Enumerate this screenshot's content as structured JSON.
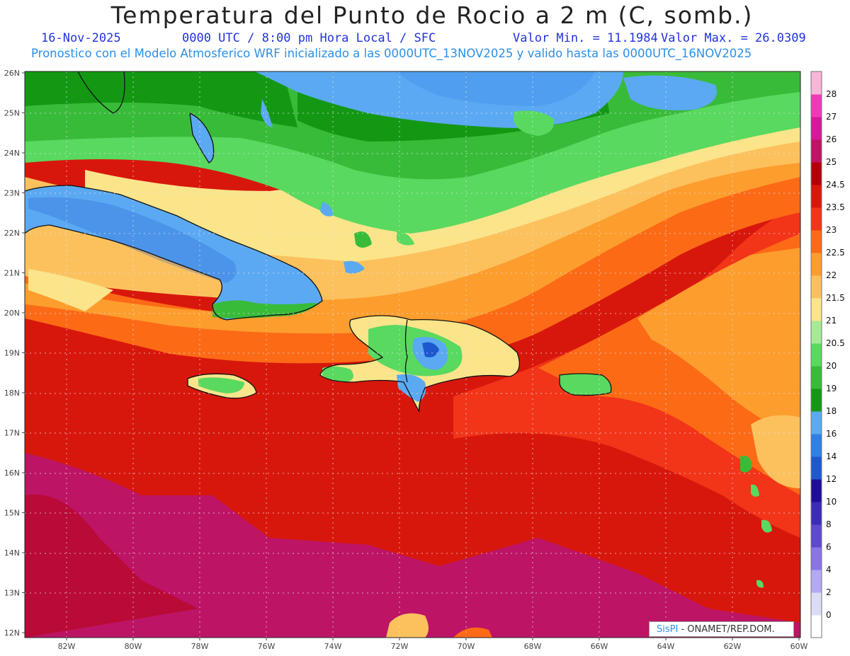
{
  "title": "Temperatura del Punto de Rocio a 2 m (C, somb.)",
  "date": "16-Nov-2025",
  "time_info": "0000 UTC / 8:00 pm Hora Local / SFC",
  "min_value": "Valor Min. = 11.1984",
  "max_value": "Valor Max. = 26.0309",
  "model_info": "Pronostico con el Modelo Atmosferico WRF inicializado a las 0000UTC_13NOV2025 y valido hasta las  0000UTC_16NOV2025",
  "credit_brand": "SisPI",
  "credit_text": " - ONAMET/REP.DOM.",
  "lon_labels": [
    "82W",
    "80W",
    "78W",
    "76W",
    "74W",
    "72W",
    "70W",
    "68W",
    "66W",
    "64W",
    "62W",
    "60W"
  ],
  "lat_labels": [
    "26N",
    "25N",
    "24N",
    "23N",
    "22N",
    "21N",
    "20N",
    "19N",
    "18N",
    "17N",
    "16N",
    "15N",
    "14N",
    "13N",
    "12N"
  ],
  "legend_labels": [
    "0",
    "2",
    "4",
    "6",
    "8",
    "10",
    "12",
    "14",
    "16",
    "18",
    "19",
    "20",
    "20.5",
    "21",
    "21.5",
    "22",
    "22.5",
    "23",
    "23.5",
    "24.5",
    "25",
    "26",
    "27",
    "28"
  ],
  "legend_colors": [
    "#ffffff",
    "#dcdcf6",
    "#b4a9f2",
    "#8a74e6",
    "#5d48cf",
    "#3a2cb8",
    "#1f0c9a",
    "#1d58cf",
    "#2f7fe6",
    "#5ba9f2",
    "#149814",
    "#39bb3a",
    "#59d95f",
    "#a6ea96",
    "#fbe48a",
    "#fcc15d",
    "#fd9d2d",
    "#fc6a16",
    "#f23418",
    "#d8170c",
    "#b5000a",
    "#bd1466",
    "#d6189c",
    "#ee3ab8",
    "#f7b6d8"
  ]
}
